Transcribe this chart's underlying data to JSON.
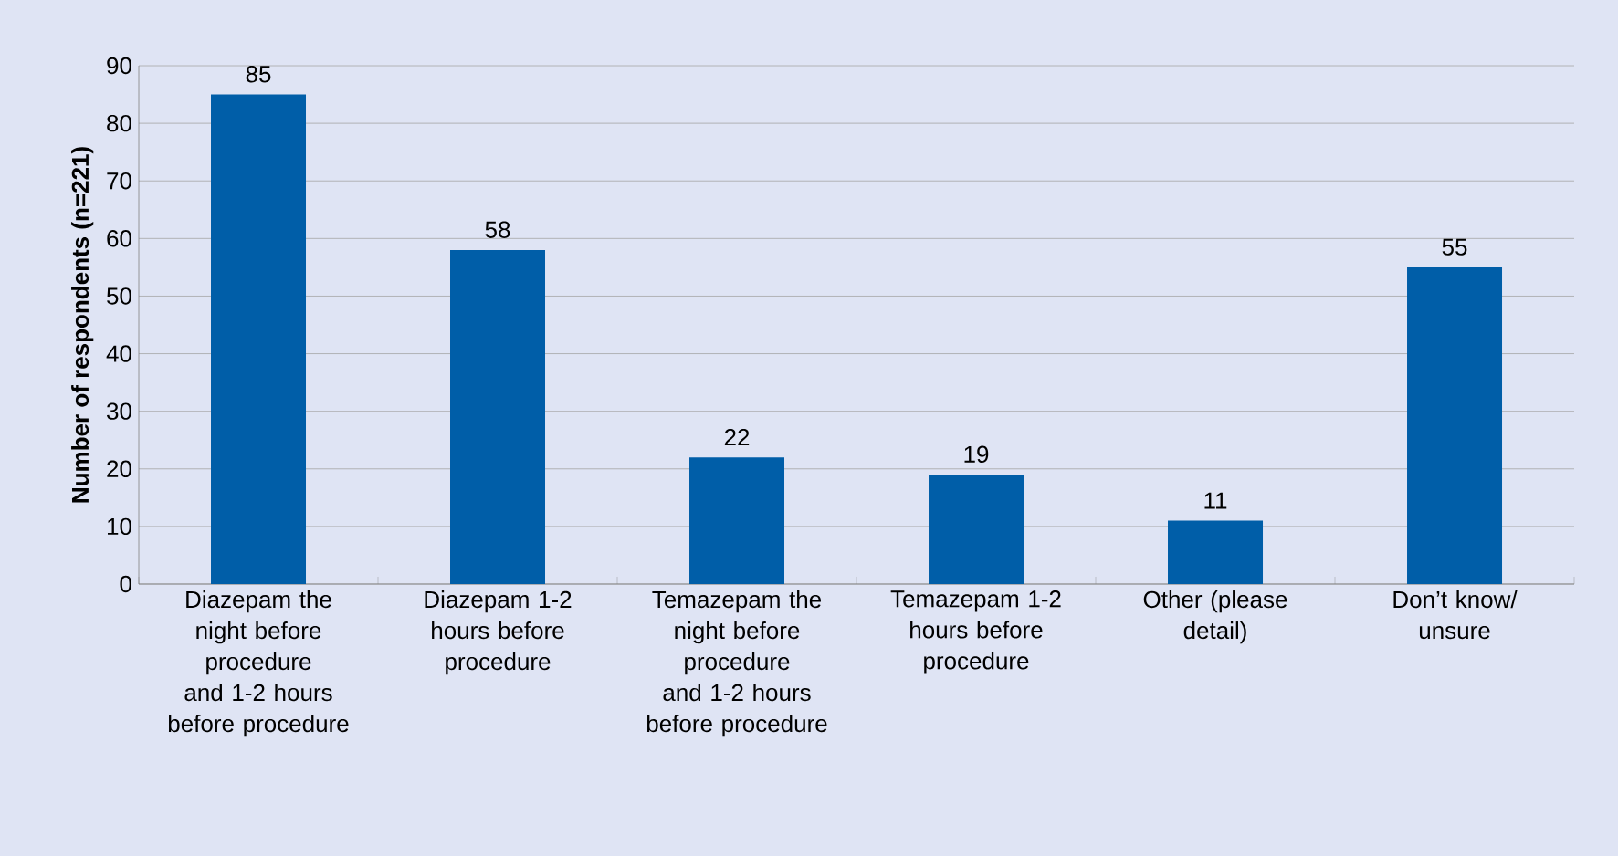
{
  "chart_data": {
    "type": "bar",
    "ylabel": "Number of respondents (n=221)",
    "categories": [
      "Diazepam the night before procedure and 1-2 hours before procedure",
      "Diazepam 1-2 hours before procedure",
      "Temazepam the night before procedure and 1-2 hours before procedure",
      "Temazepam 1-2 hours before procedure",
      "Other (please detail)",
      "Don’t  know/ unsure"
    ],
    "values": [
      85,
      58,
      22,
      19,
      11,
      55
    ],
    "color": "#005ea8",
    "ylim": [
      0,
      90
    ],
    "yticks": [
      0,
      10,
      20,
      30,
      40,
      50,
      60,
      70,
      80,
      90
    ],
    "grid": "y",
    "data_labels": true
  }
}
